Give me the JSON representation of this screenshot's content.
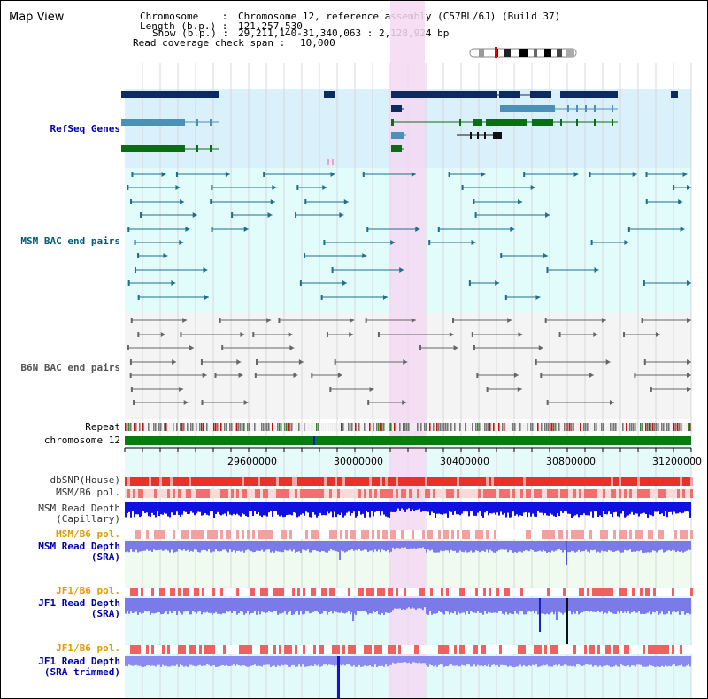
{
  "title": "Map View",
  "header": {
    "chromosome_label": "Chromosome    :",
    "chromosome_value": "Chromosome 12, reference assembly (C57BL/6J) (Build 37)",
    "length_label": "Length (b.p.) :",
    "length_value": "121,257,530",
    "show_label": "Show (b.p.) :",
    "show_value": "29,211,140-31,340,063 : 2,128,924 bp",
    "coverage_label": "Read coverage check span :",
    "coverage_value": "10,000"
  },
  "tracks": {
    "refseq": "RefSeq Genes",
    "msm_bac": "MSM BAC end pairs",
    "b6n_bac": "B6N BAC end pairs",
    "repeat": "Repeat",
    "chromosome": "chromosome 12",
    "dbsnp": "dbSNP(House)",
    "msm_b6_pol": "MSM/B6 pol.",
    "msm_depth_cap_1": "MSM Read Depth",
    "msm_depth_cap_2": "(Capillary)",
    "msm_b6_pol_2": "MSM/B6 pol.",
    "msm_depth_sra_1": "MSM Read Depth",
    "msm_depth_sra_2": "(SRA)",
    "jf1_b6_pol": "JF1/B6 pol.",
    "jf1_depth_sra_1": "JF1 Read Depth",
    "jf1_depth_sra_2": "(SRA)",
    "jf1_b6_pol_2": "JF1/B6 pol.",
    "jf1_depth_trim_1": "JF1 Read Depth",
    "jf1_depth_trim_2": "(SRA trimmed)"
  },
  "axis": {
    "ticks": [
      "29600000",
      "30000000",
      "30400000",
      "30800000",
      "31200000"
    ]
  },
  "colors": {
    "refseq_bg": "#daf0fb",
    "msm_bac_bg": "#e2fbfb",
    "b6n_bg": "#f4f4f4",
    "highlight": "#f5d8f3",
    "navy": "#0d2b5e",
    "steel": "#4a90b8",
    "green": "#0a6e12",
    "teal": "#1f6f8b",
    "grey_line": "#666666",
    "blue": "#1010e0",
    "lavender": "#8a8af0",
    "pink": "#f07878",
    "pol_label": "#e69a00",
    "blue_label": "#0000aa"
  }
}
